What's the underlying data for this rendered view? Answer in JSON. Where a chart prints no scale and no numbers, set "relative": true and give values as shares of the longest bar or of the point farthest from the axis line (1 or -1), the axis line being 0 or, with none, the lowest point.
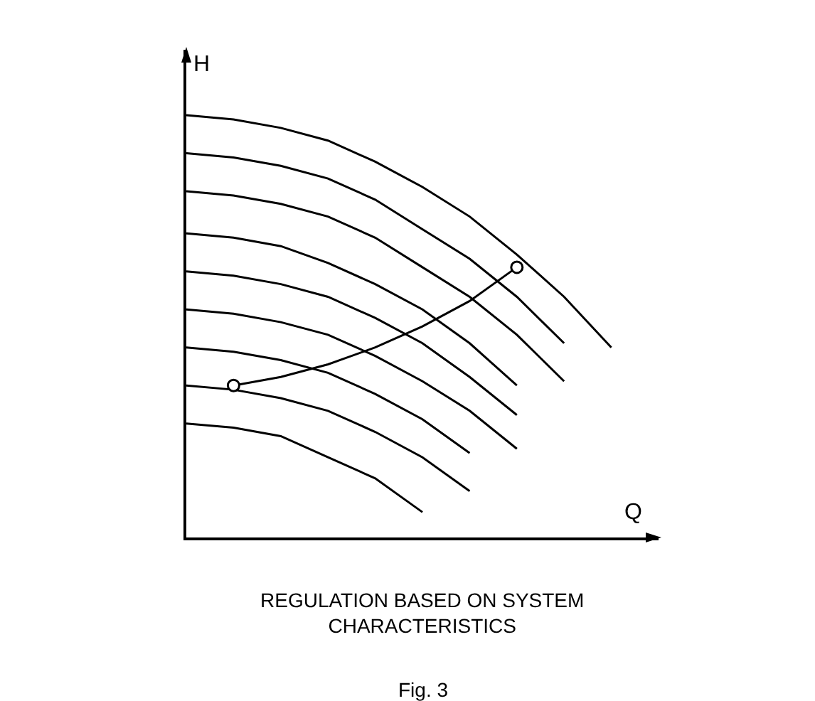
{
  "chart_data": {
    "type": "line",
    "relative": true,
    "tick_labels": false,
    "xlabel": "Q",
    "ylabel": "H",
    "annotations": [
      "REGULATION BASED ON SYSTEM CHARACTERISTICS",
      "Fig. 3"
    ],
    "categories": [
      null,
      null,
      null,
      null,
      null,
      null,
      null,
      null,
      null,
      null,
      null
    ],
    "series": [
      {
        "color": "#000000",
        "values": [
          1,
          0.99,
          0.97,
          0.94,
          0.89,
          0.83,
          0.76,
          0.67,
          0.57,
          0.45,
          null
        ]
      },
      {
        "color": "#000000",
        "values": [
          0.91,
          0.9,
          0.88,
          0.85,
          0.8,
          0.73,
          0.66,
          0.57,
          0.46,
          null,
          null
        ]
      },
      {
        "color": "#000000",
        "values": [
          0.82,
          0.81,
          0.79,
          0.76,
          0.71,
          0.64,
          0.57,
          0.48,
          0.37,
          null,
          null
        ]
      },
      {
        "color": "#000000",
        "values": [
          0.72,
          0.71,
          0.69,
          0.65,
          0.6,
          0.54,
          0.46,
          0.36,
          null,
          null,
          null
        ]
      },
      {
        "color": "#000000",
        "values": [
          0.63,
          0.62,
          0.6,
          0.57,
          0.52,
          0.46,
          0.38,
          0.29,
          null,
          null,
          null
        ]
      },
      {
        "color": "#000000",
        "values": [
          0.54,
          0.53,
          0.51,
          0.48,
          0.43,
          0.37,
          0.3,
          0.21,
          null,
          null,
          null
        ]
      },
      {
        "color": "#000000",
        "values": [
          0.45,
          0.44,
          0.42,
          0.39,
          0.34,
          0.28,
          0.2,
          null,
          null,
          null,
          null
        ]
      },
      {
        "color": "#000000",
        "values": [
          0.36,
          0.35,
          0.33,
          0.3,
          0.25,
          0.19,
          0.11,
          null,
          null,
          null,
          null
        ]
      },
      {
        "color": "#000000",
        "values": [
          0.27,
          0.26,
          0.24,
          0.19,
          0.14,
          0.06,
          null,
          null,
          null,
          null,
          null
        ]
      },
      {
        "color": "#000000",
        "values": [
          null,
          0.36,
          0.38,
          0.41,
          0.45,
          0.5,
          0.56,
          0.64,
          null,
          null,
          null
        ]
      }
    ]
  }
}
